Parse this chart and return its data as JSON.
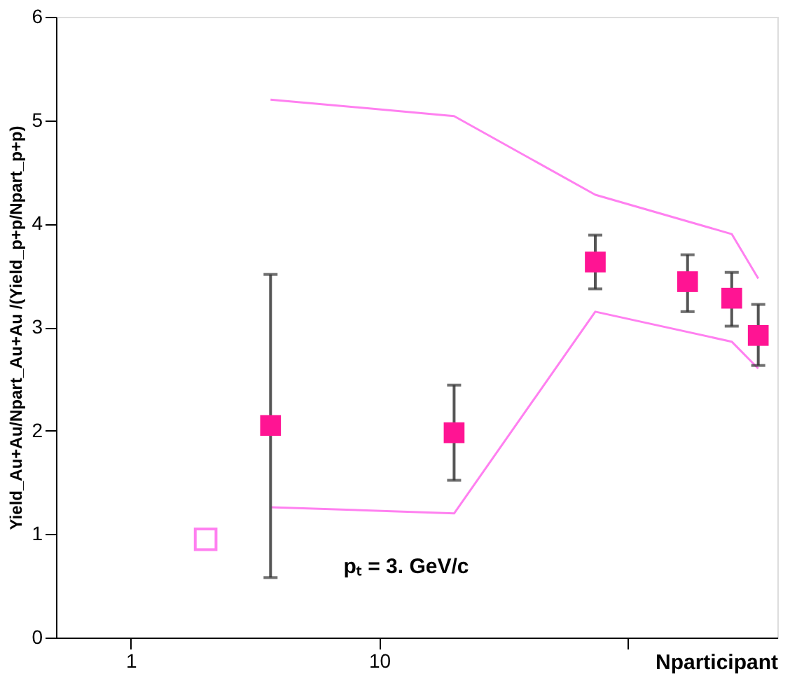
{
  "chart_data": {
    "type": "scatter",
    "xlabel": "Nparticipant",
    "ylabel": "Yield_Au+Au/Npart_Au+Au /(Yield_p+p/Npart_p+p)",
    "annotations": [
      "pₜ = 3. GeV/c"
    ],
    "log": "x",
    "grid": false,
    "xlim": [
      0.5,
      400
    ],
    "xticks": [
      1,
      10,
      {
        "value": 100,
        "label": null
      }
    ],
    "ylim": [
      0,
      6
    ],
    "yticks": [
      0,
      1,
      2,
      3,
      4,
      5,
      6
    ],
    "series": [
      {
        "type": "line",
        "marker": "none",
        "line_style": "solid",
        "color": "#ff80f0",
        "x": [
          3.65,
          20,
          74,
          262,
          335
        ],
        "values": [
          5.2,
          5.04,
          4.28,
          3.9,
          3.47
        ]
      },
      {
        "type": "line",
        "marker": "none",
        "line_style": "solid",
        "color": "#ff80f0",
        "x": [
          3.65,
          20,
          74,
          262,
          335
        ],
        "values": [
          1.26,
          1.2,
          3.15,
          2.86,
          2.6
        ]
      },
      {
        "marker": "square_open",
        "color": "#ff80f0",
        "x": [
          2.0
        ],
        "values": [
          0.95
        ]
      },
      {
        "marker": "square",
        "color": "#ff1493",
        "x": [
          3.65,
          20,
          74,
          174,
          262,
          335
        ],
        "values": [
          2.05,
          1.98,
          3.63,
          3.44,
          3.28,
          2.92
        ],
        "errors": [
          [
            0.58,
            3.51
          ],
          [
            1.52,
            2.44
          ],
          [
            3.37,
            3.89
          ],
          [
            3.15,
            3.7
          ],
          [
            3.01,
            3.53
          ],
          [
            2.63,
            3.22
          ]
        ]
      }
    ]
  }
}
